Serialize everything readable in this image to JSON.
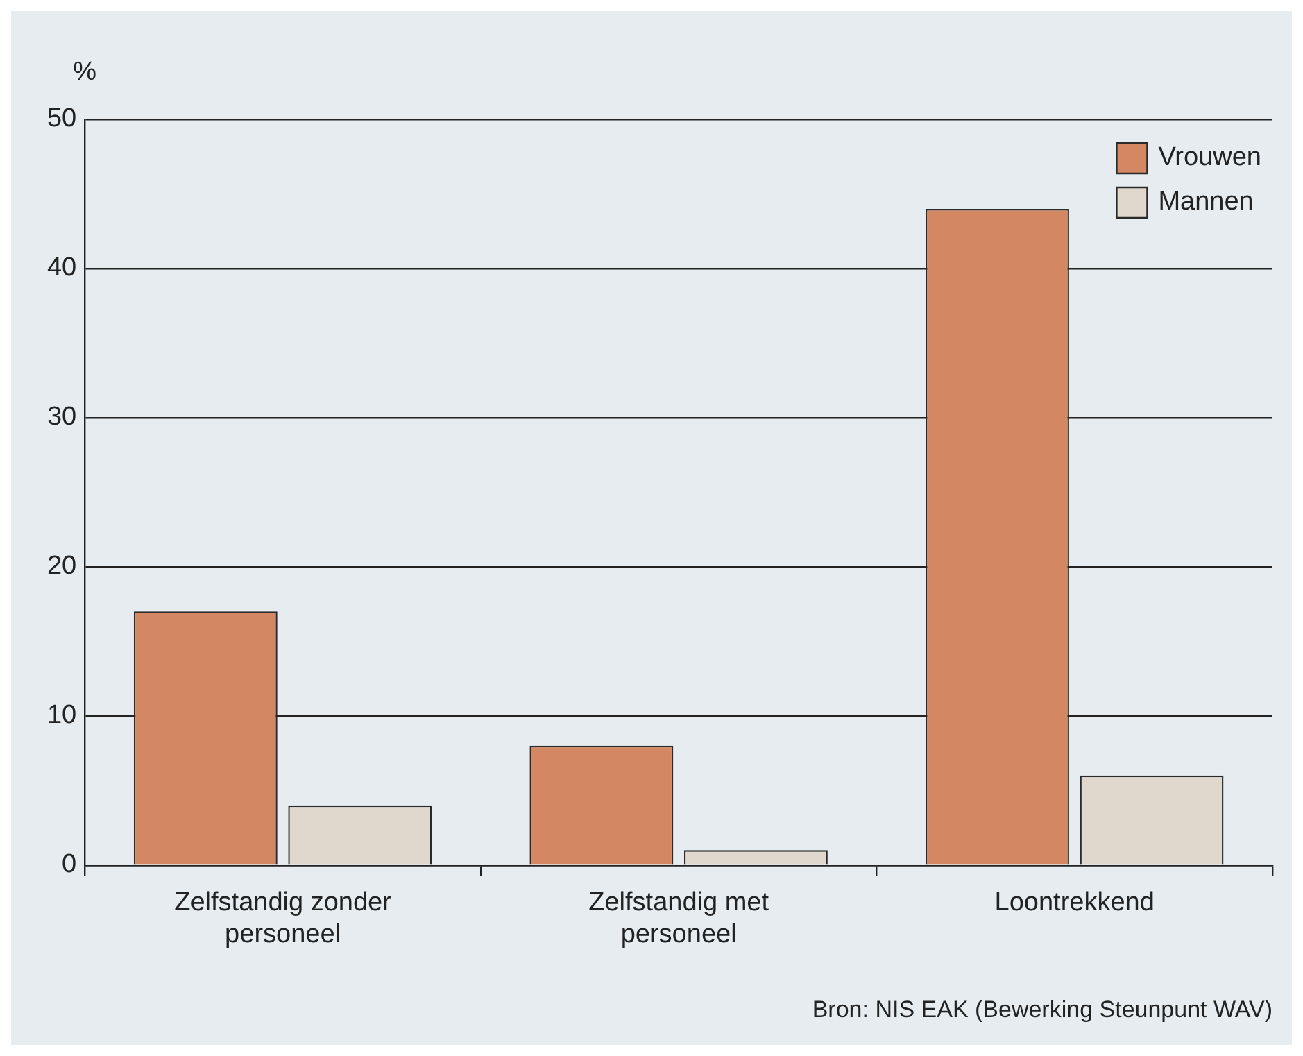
{
  "chart_data": {
    "type": "bar",
    "ylabel": "%",
    "categories": [
      "Zelfstandig zonder personeel",
      "Zelfstandig met personeel",
      "Loontrekkend"
    ],
    "series": [
      {
        "name": "Vrouwen",
        "color": "#d38763",
        "values": [
          17,
          8,
          44
        ]
      },
      {
        "name": "Mannen",
        "color": "#e0d8cc",
        "values": [
          4,
          1,
          6
        ]
      }
    ],
    "ylim": [
      0,
      50
    ],
    "yticks": [
      0,
      10,
      20,
      30,
      40,
      50
    ],
    "grid": "y",
    "legend": "top right",
    "annotations": [
      "Bron: NIS EAK (Bewerking Steunpunt WAV)"
    ]
  }
}
